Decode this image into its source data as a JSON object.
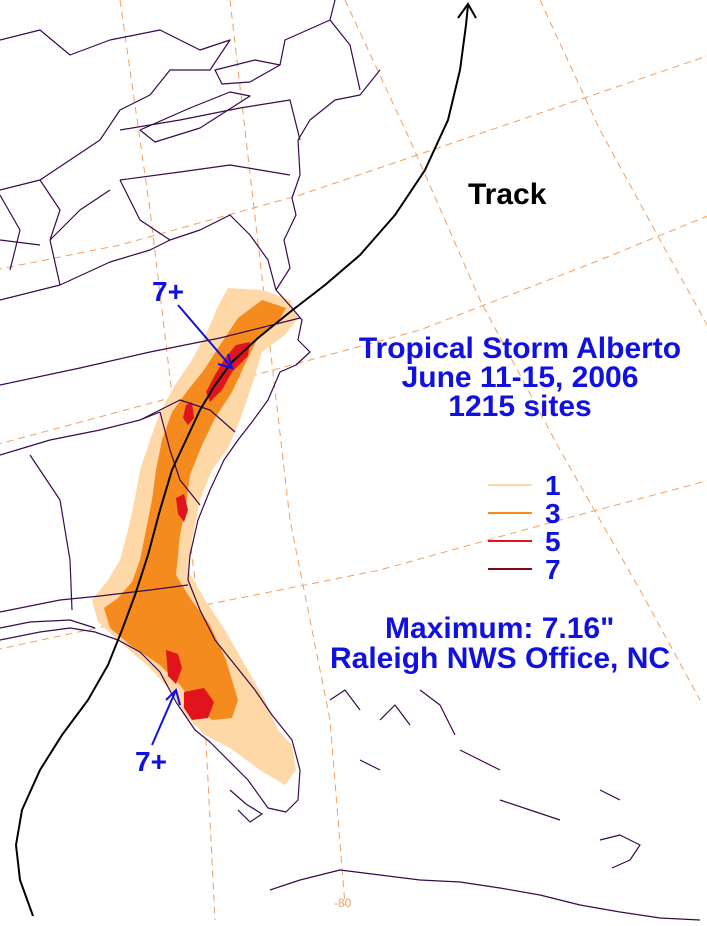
{
  "map": {
    "track_label": "Track",
    "title_lines": [
      "Tropical Storm Alberto",
      "June 11-15, 2006",
      "1215 sites"
    ],
    "max_label": "Maximum:  7.16\"",
    "max_location": "Raleigh NWS Office, NC",
    "callout_north": "7+",
    "callout_south": "7+",
    "longitude_label": "-80",
    "legend": [
      {
        "value": "1",
        "color": "#ffd8a8"
      },
      {
        "value": "3",
        "color": "#f58a1f"
      },
      {
        "value": "5",
        "color": "#e0141c"
      },
      {
        "value": "7",
        "color": "#7a0a14"
      }
    ],
    "colors": {
      "text": "#1010e0",
      "boundary": "#3a0a4a",
      "graticule": "#f0a060",
      "track": "#000000"
    }
  }
}
